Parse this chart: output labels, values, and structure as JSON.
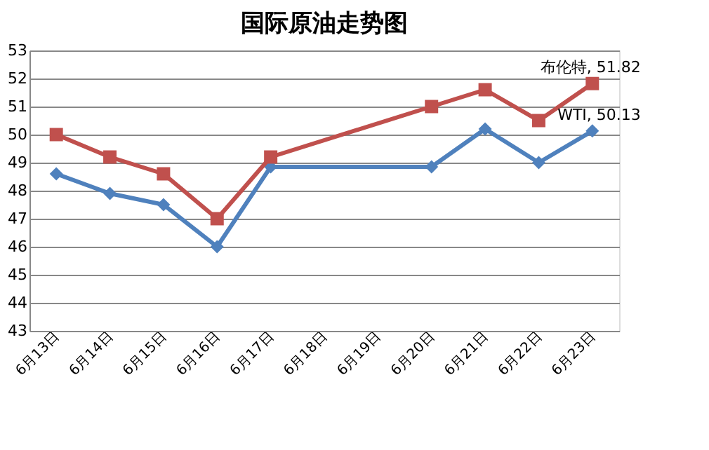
{
  "chart_data": {
    "type": "line",
    "title": "国际原油走势图",
    "categories": [
      "6月13日",
      "6月14日",
      "6月15日",
      "6月16日",
      "6月17日",
      "6月18日",
      "6月19日",
      "6月20日",
      "6月21日",
      "6月22日",
      "6月23日"
    ],
    "series": [
      {
        "name": "WTI",
        "color": "#4f81bd",
        "marker": "diamond",
        "values": [
          48.6,
          47.9,
          47.5,
          46.0,
          48.85,
          null,
          null,
          48.85,
          50.2,
          49.0,
          50.13
        ],
        "value_labels": [
          null,
          null,
          null,
          null,
          null,
          null,
          null,
          null,
          null,
          null,
          ", 50.13"
        ]
      },
      {
        "name": "布伦特",
        "color": "#c0504d",
        "marker": "square",
        "values": [
          50.0,
          49.2,
          48.6,
          47.0,
          49.2,
          null,
          null,
          51.0,
          51.6,
          50.5,
          51.82
        ],
        "value_labels": [
          null,
          null,
          null,
          null,
          null,
          null,
          null,
          null,
          null,
          null,
          ", 51.82"
        ]
      }
    ],
    "ylim": [
      43,
      53
    ],
    "yticks": [
      43,
      44,
      45,
      46,
      47,
      48,
      49,
      50,
      51,
      52,
      53
    ],
    "grid": "y",
    "line_style": "solid"
  }
}
